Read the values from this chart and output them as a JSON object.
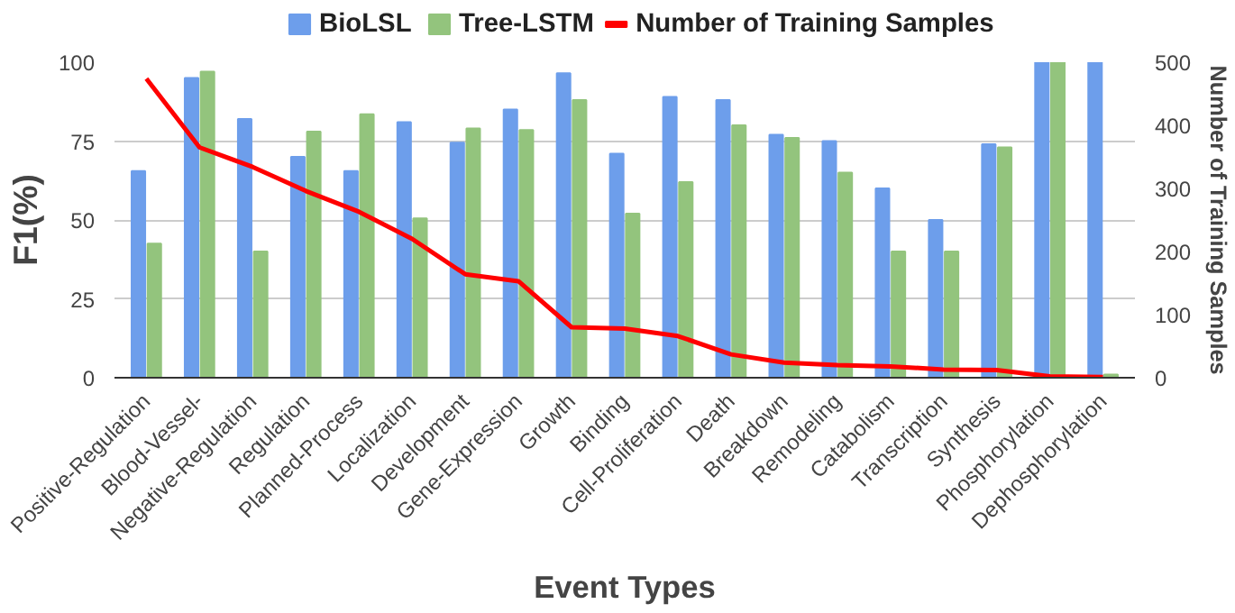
{
  "chart_data": {
    "type": "bar",
    "xlabel": "Event Types",
    "ylabel": "F1(%)",
    "y2label": "Number of Training Samples",
    "categories": [
      "Positive-Regulation",
      "Blood-Vessel-",
      "Negative-Regulation",
      "Regulation",
      "Planned-Process",
      "Localization",
      "Development",
      "Gene-Expression",
      "Growth",
      "Binding",
      "Cell-Proliferation",
      "Death",
      "Breakdown",
      "Remodeling",
      "Catabolism",
      "Transcription",
      "Synthesis",
      "Phosphorylation",
      "Dephosphorylation"
    ],
    "series": [
      {
        "name": "BioLSL",
        "color": "#6d9eeb",
        "values": [
          65.5,
          95,
          82,
          70,
          65.5,
          81,
          74.5,
          85,
          96.5,
          71,
          89,
          88,
          77,
          75,
          60,
          50,
          74,
          100,
          100
        ]
      },
      {
        "name": "Tree-LSTM",
        "color": "#93c47d",
        "values": [
          42.5,
          97,
          40,
          78,
          83.5,
          50.5,
          79,
          78.5,
          88,
          52,
          62,
          80,
          76,
          65,
          40,
          40,
          73,
          100,
          1
        ]
      },
      {
        "name": "Number of Training Samples",
        "type": "line",
        "axis": "y2",
        "color": "#ff0000",
        "values": [
          474,
          365,
          334,
          296,
          263,
          220,
          164,
          153,
          80,
          78,
          66,
          37,
          24,
          20,
          18,
          13,
          12,
          2,
          1
        ]
      }
    ],
    "ylim": [
      0,
      100
    ],
    "yticks": [
      0,
      25,
      50,
      75,
      100
    ],
    "y2lim": [
      0,
      500
    ],
    "y2ticks": [
      0,
      100,
      200,
      300,
      400,
      500
    ],
    "grid": "y",
    "legend": "top"
  }
}
